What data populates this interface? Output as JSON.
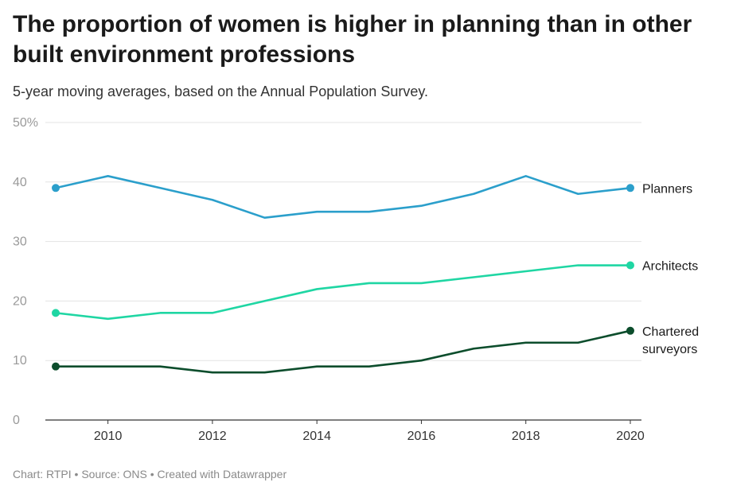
{
  "header": {
    "title": "The proportion of women is higher in planning than in other built environment professions",
    "subtitle": "5-year moving averages, based on the Annual Population Survey."
  },
  "footer": {
    "credit": "Chart: RTPI • Source: ONS • Created with Datawrapper"
  },
  "chart_data": {
    "type": "line",
    "title": "The proportion of women is higher in planning than in other built environment professions",
    "subtitle": "5-year moving averages, based on the Annual Population Survey.",
    "xlabel": "",
    "ylabel": "",
    "x": [
      2009,
      2010,
      2011,
      2012,
      2013,
      2014,
      2015,
      2016,
      2017,
      2018,
      2019,
      2020
    ],
    "xlim": [
      2009,
      2020
    ],
    "xticks": [
      "2010",
      "2012",
      "2014",
      "2016",
      "2018",
      "2020"
    ],
    "ylim": [
      0,
      50
    ],
    "yticks": [
      "0",
      "10",
      "20",
      "30",
      "40",
      "50%"
    ],
    "grid": true,
    "legend": "direct labels at line ends",
    "series": [
      {
        "name": "Planners",
        "color": "#2b9fcb",
        "values": [
          39,
          41,
          39,
          37,
          34,
          35,
          35,
          36,
          38,
          41,
          38,
          39
        ]
      },
      {
        "name": "Architects",
        "color": "#1fd6a3",
        "values": [
          18,
          17,
          18,
          18,
          20,
          22,
          23,
          23,
          24,
          25,
          26,
          26
        ]
      },
      {
        "name": "Chartered surveyors",
        "color": "#0c4d2c",
        "values": [
          9,
          9,
          9,
          8,
          8,
          9,
          9,
          10,
          12,
          13,
          13,
          15
        ]
      }
    ]
  }
}
